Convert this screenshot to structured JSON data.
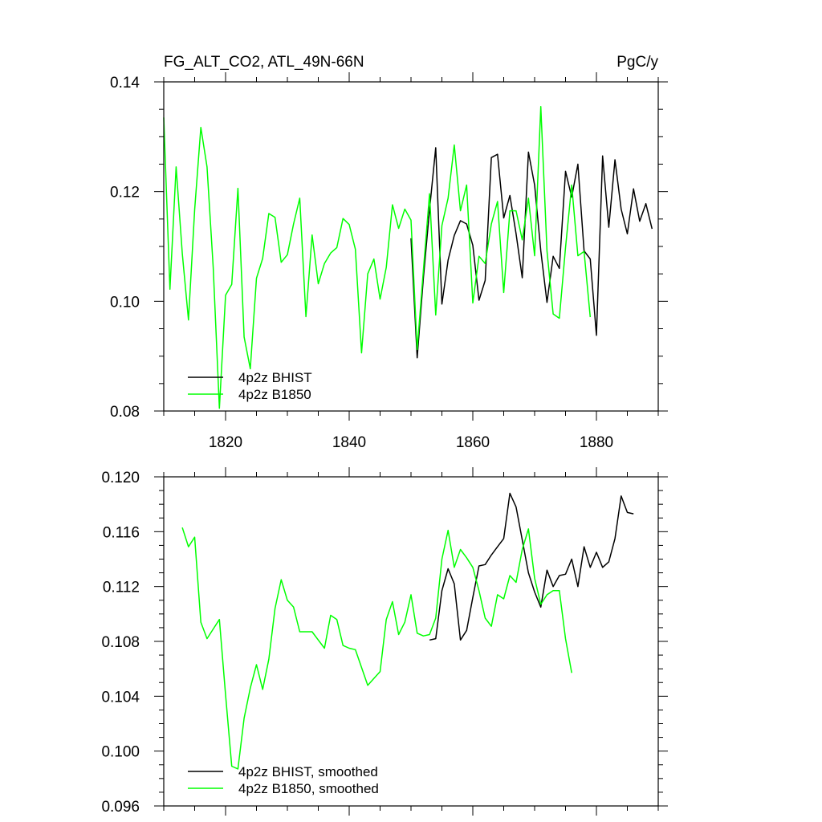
{
  "chart_data": [
    {
      "type": "line",
      "title": "FG_ALT_CO2, ATL_49N-66N",
      "units": "PgC/y",
      "xlim": [
        1810,
        1890
      ],
      "ylim": [
        0.08,
        0.14
      ],
      "xticks": [
        1820,
        1840,
        1860,
        1880
      ],
      "xtick_labels": [
        "1820",
        "1840",
        "1860",
        "1880"
      ],
      "yticks": [
        0.08,
        0.1,
        0.12,
        0.14
      ],
      "ytick_labels": [
        "0.08",
        "0.10",
        "0.12",
        "0.14"
      ],
      "legend": "bottom-left",
      "series": [
        {
          "name": "4p2z BHIST",
          "color": "#000000",
          "x": [
            1850,
            1851,
            1852,
            1853,
            1854,
            1855,
            1856,
            1857,
            1858,
            1859,
            1860,
            1861,
            1862,
            1863,
            1864,
            1865,
            1866,
            1867,
            1868,
            1869,
            1870,
            1871,
            1872,
            1873,
            1874,
            1875,
            1876,
            1877,
            1878,
            1879,
            1880,
            1881,
            1882,
            1883,
            1884,
            1885,
            1886,
            1887,
            1888,
            1889
          ],
          "values": [
            0.1115,
            0.0897,
            0.1042,
            0.1167,
            0.128,
            0.0995,
            0.1075,
            0.112,
            0.1147,
            0.1141,
            0.1102,
            0.1002,
            0.1038,
            0.1262,
            0.1268,
            0.1152,
            0.1193,
            0.1123,
            0.1043,
            0.1272,
            0.1212,
            0.1092,
            0.0998,
            0.1082,
            0.106,
            0.1237,
            0.119,
            0.125,
            0.1092,
            0.1077,
            0.0938,
            0.1265,
            0.1135,
            0.1258,
            0.1168,
            0.1123,
            0.1205,
            0.1146,
            0.1178,
            0.1132
          ]
        },
        {
          "name": "4p2z B1850",
          "color": "#00ff00",
          "x": [
            1810,
            1811,
            1812,
            1813,
            1814,
            1815,
            1816,
            1817,
            1818,
            1819,
            1820,
            1821,
            1822,
            1823,
            1824,
            1825,
            1826,
            1827,
            1828,
            1829,
            1830,
            1831,
            1832,
            1833,
            1834,
            1835,
            1836,
            1837,
            1838,
            1839,
            1840,
            1841,
            1842,
            1843,
            1844,
            1845,
            1846,
            1847,
            1848,
            1849,
            1850,
            1851,
            1852,
            1853,
            1854,
            1855,
            1856,
            1857,
            1858,
            1859,
            1860,
            1861,
            1862,
            1863,
            1864,
            1865,
            1866,
            1867,
            1868,
            1869,
            1870,
            1871,
            1872,
            1873,
            1874,
            1875,
            1876,
            1877,
            1878,
            1879
          ],
          "values": [
            0.1335,
            0.1022,
            0.1245,
            0.1087,
            0.0966,
            0.1167,
            0.1317,
            0.1245,
            0.1062,
            0.0805,
            0.1011,
            0.1031,
            0.1206,
            0.0935,
            0.0877,
            0.1042,
            0.1078,
            0.116,
            0.1153,
            0.1071,
            0.1085,
            0.1141,
            0.1188,
            0.0972,
            0.1121,
            0.1032,
            0.1069,
            0.1088,
            0.1098,
            0.1151,
            0.114,
            0.1095,
            0.0906,
            0.105,
            0.1077,
            0.1004,
            0.1062,
            0.1176,
            0.1133,
            0.1168,
            0.1148,
            0.0912,
            0.1056,
            0.1196,
            0.0975,
            0.1138,
            0.1188,
            0.1285,
            0.1165,
            0.1212,
            0.0997,
            0.1082,
            0.1069,
            0.1141,
            0.1182,
            0.1016,
            0.1165,
            0.1165,
            0.1112,
            0.1188,
            0.1083,
            0.1355,
            0.1092,
            0.0977,
            0.0969,
            0.1098,
            0.1212,
            0.1083,
            0.1091,
            0.0971
          ]
        }
      ]
    },
    {
      "type": "line",
      "title": "",
      "xlim": [
        1810,
        1890
      ],
      "ylim": [
        0.096,
        0.12
      ],
      "xticks": [
        1820,
        1840,
        1860,
        1880
      ],
      "xtick_labels": [],
      "yticks": [
        0.096,
        0.1,
        0.104,
        0.108,
        0.112,
        0.116,
        0.12
      ],
      "ytick_labels": [
        "0.096",
        "0.100",
        "0.104",
        "0.108",
        "0.112",
        "0.116",
        "0.120"
      ],
      "legend": "bottom-left",
      "series": [
        {
          "name": "4p2z BHIST, smoothed",
          "color": "#000000",
          "x": [
            1853,
            1854,
            1855,
            1856,
            1857,
            1858,
            1859,
            1860,
            1861,
            1862,
            1863,
            1864,
            1865,
            1866,
            1867,
            1868,
            1869,
            1870,
            1871,
            1872,
            1873,
            1874,
            1875,
            1876,
            1877,
            1878,
            1879,
            1880,
            1881,
            1882,
            1883,
            1884,
            1885,
            1886
          ],
          "values": [
            0.1081,
            0.1082,
            0.1117,
            0.1133,
            0.1122,
            0.1081,
            0.1088,
            0.1112,
            0.1135,
            0.1136,
            0.1143,
            0.1149,
            0.1155,
            0.1188,
            0.1178,
            0.1154,
            0.113,
            0.1116,
            0.1105,
            0.1132,
            0.112,
            0.1128,
            0.1129,
            0.114,
            0.112,
            0.1149,
            0.1134,
            0.1145,
            0.1134,
            0.1138,
            0.1155,
            0.1186,
            0.1174,
            0.1173
          ]
        },
        {
          "name": "4p2z B1850, smoothed",
          "color": "#00ff00",
          "x": [
            1813,
            1814,
            1815,
            1816,
            1817,
            1818,
            1819,
            1820,
            1821,
            1822,
            1823,
            1824,
            1825,
            1826,
            1827,
            1828,
            1829,
            1830,
            1831,
            1832,
            1833,
            1834,
            1835,
            1836,
            1837,
            1838,
            1839,
            1840,
            1841,
            1842,
            1843,
            1844,
            1845,
            1846,
            1847,
            1848,
            1849,
            1850,
            1851,
            1852,
            1853,
            1854,
            1855,
            1856,
            1857,
            1858,
            1859,
            1860,
            1861,
            1862,
            1863,
            1864,
            1865,
            1866,
            1867,
            1868,
            1869,
            1870,
            1871,
            1872,
            1873,
            1874,
            1875,
            1876
          ],
          "values": [
            0.1163,
            0.1149,
            0.1156,
            0.1094,
            0.1082,
            0.1089,
            0.1096,
            0.1041,
            0.0989,
            0.0987,
            0.1024,
            0.1046,
            0.1063,
            0.1045,
            0.1067,
            0.1104,
            0.1125,
            0.111,
            0.1105,
            0.1087,
            0.1087,
            0.1087,
            0.1081,
            0.1075,
            0.1099,
            0.1096,
            0.1077,
            0.1075,
            0.1074,
            0.1061,
            0.1048,
            0.1053,
            0.1058,
            0.1096,
            0.1109,
            0.1085,
            0.1094,
            0.1114,
            0.1086,
            0.1084,
            0.1085,
            0.1097,
            0.114,
            0.1161,
            0.1134,
            0.1147,
            0.1141,
            0.1134,
            0.1117,
            0.1097,
            0.1091,
            0.1114,
            0.1111,
            0.1128,
            0.1123,
            0.1147,
            0.1162,
            0.1126,
            0.1107,
            0.1114,
            0.1117,
            0.1117,
            0.1082,
            0.1057
          ]
        }
      ]
    }
  ]
}
